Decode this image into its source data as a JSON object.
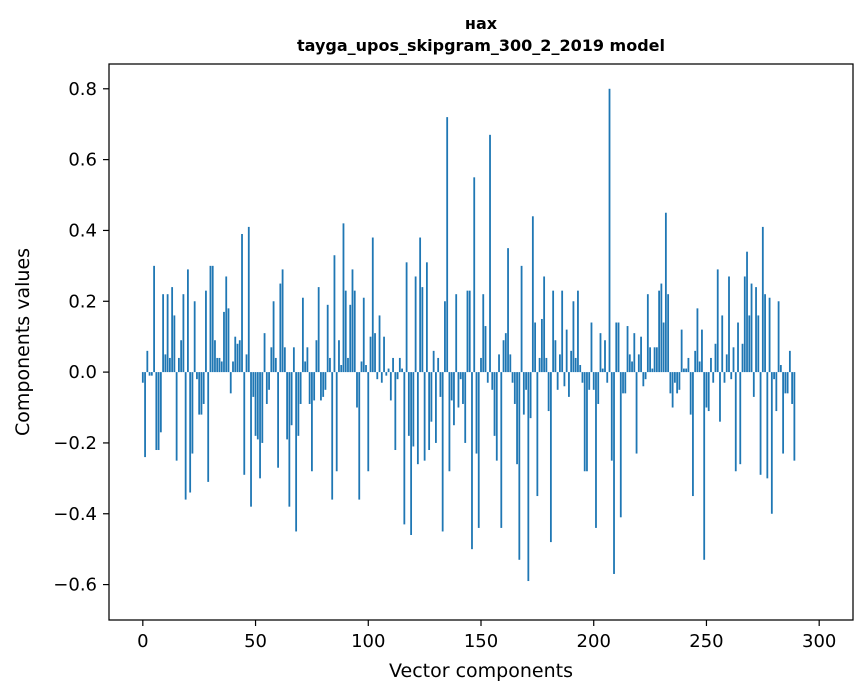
{
  "chart_data": {
    "type": "bar",
    "title_line1": "нах",
    "title_line2": "tayga_upos_skipgram_300_2_2019 model",
    "xlabel": "Vector components",
    "ylabel": "Components values",
    "xlim": [
      -15,
      315
    ],
    "ylim": [
      -0.7,
      0.87
    ],
    "xticks": [
      0,
      50,
      100,
      150,
      200,
      250,
      300
    ],
    "xtick_labels": [
      "0",
      "50",
      "100",
      "150",
      "200",
      "250",
      "300"
    ],
    "yticks": [
      -0.6,
      -0.4,
      -0.2,
      0.0,
      0.2,
      0.4,
      0.6,
      0.8
    ],
    "ytick_labels": [
      "−0.6",
      "−0.4",
      "−0.2",
      "0.0",
      "0.2",
      "0.4",
      "0.6",
      "0.8"
    ],
    "bar_color": "#1f77b4",
    "grid": false,
    "series": [
      {
        "values": [
          -0.03,
          -0.24,
          0.06,
          -0.01,
          -0.01,
          0.3,
          -0.22,
          -0.22,
          -0.17,
          0.22,
          0.05,
          0.22,
          0.04,
          0.24,
          0.16,
          -0.25,
          0.04,
          0.09,
          0.22,
          -0.36,
          0.29,
          -0.34,
          -0.23,
          0.2,
          -0.02,
          -0.12,
          -0.12,
          -0.09,
          0.23,
          -0.31,
          0.3,
          0.3,
          0.09,
          0.04,
          0.04,
          0.03,
          0.17,
          0.27,
          0.18,
          -0.06,
          0.03,
          0.1,
          0.08,
          0.09,
          0.39,
          -0.29,
          0.05,
          0.41,
          -0.38,
          -0.07,
          -0.18,
          -0.19,
          -0.3,
          -0.2,
          0.11,
          -0.09,
          -0.05,
          0.07,
          0.2,
          0.04,
          -0.27,
          0.25,
          0.29,
          0.07,
          -0.19,
          -0.38,
          -0.15,
          0.07,
          -0.45,
          -0.18,
          -0.09,
          0.21,
          0.03,
          0.07,
          -0.09,
          -0.28,
          -0.08,
          0.09,
          0.24,
          -0.08,
          -0.07,
          -0.05,
          0.19,
          0.04,
          -0.36,
          0.33,
          -0.28,
          0.09,
          0.02,
          0.42,
          0.23,
          0.04,
          0.19,
          0.29,
          0.23,
          -0.1,
          -0.36,
          0.03,
          0.21,
          0.02,
          -0.28,
          0.1,
          0.38,
          0.11,
          -0.02,
          0.16,
          -0.03,
          0.1,
          -0.01,
          0.01,
          -0.08,
          0.04,
          -0.22,
          -0.02,
          0.04,
          0.01,
          -0.43,
          0.31,
          -0.18,
          -0.46,
          -0.21,
          0.27,
          -0.26,
          0.38,
          0.24,
          -0.25,
          0.31,
          -0.22,
          -0.14,
          0.06,
          -0.2,
          0.04,
          -0.07,
          -0.45,
          0.2,
          0.72,
          -0.28,
          -0.08,
          -0.15,
          0.22,
          -0.1,
          -0.02,
          -0.09,
          -0.2,
          0.23,
          0.23,
          -0.5,
          0.55,
          -0.23,
          -0.44,
          0.04,
          0.22,
          0.13,
          -0.03,
          0.67,
          -0.05,
          -0.18,
          -0.25,
          0.05,
          -0.44,
          0.09,
          0.11,
          0.35,
          0.05,
          -0.03,
          -0.09,
          -0.26,
          -0.53,
          0.3,
          -0.12,
          -0.05,
          -0.59,
          -0.13,
          0.44,
          0.14,
          -0.35,
          0.04,
          0.15,
          0.27,
          0.04,
          -0.11,
          -0.48,
          0.23,
          0.09,
          -0.05,
          0.05,
          0.23,
          -0.04,
          0.12,
          -0.07,
          0.06,
          0.2,
          0.04,
          0.23,
          0.02,
          -0.03,
          -0.28,
          -0.28,
          -0.05,
          0.14,
          -0.05,
          -0.44,
          -0.09,
          0.11,
          0.01,
          0.09,
          -0.03,
          0.8,
          -0.25,
          -0.57,
          0.14,
          0.14,
          -0.41,
          -0.06,
          -0.06,
          0.13,
          0.05,
          0.03,
          0.11,
          -0.23,
          0.05,
          0.1,
          -0.04,
          -0.02,
          0.22,
          0.07,
          0.01,
          0.07,
          0.07,
          0.23,
          0.25,
          0.14,
          0.45,
          0.22,
          -0.06,
          -0.1,
          -0.03,
          -0.06,
          -0.05,
          0.12,
          0.01,
          0.01,
          0.04,
          -0.12,
          -0.35,
          0.06,
          0.18,
          0.03,
          0.12,
          -0.53,
          -0.1,
          -0.11,
          0.04,
          -0.03,
          0.08,
          0.29,
          -0.14,
          0.16,
          -0.03,
          0.05,
          0.27,
          -0.02,
          0.07,
          -0.28,
          0.14,
          -0.26,
          0.08,
          0.27,
          0.34,
          0.16,
          0.25,
          -0.07,
          0.24,
          0.16,
          -0.29,
          0.41,
          0.22,
          -0.3,
          0.21,
          -0.4,
          -0.02,
          -0.11,
          0.2,
          0.02,
          -0.23,
          -0.06,
          -0.06,
          0.06,
          -0.09,
          -0.25
        ]
      }
    ]
  }
}
